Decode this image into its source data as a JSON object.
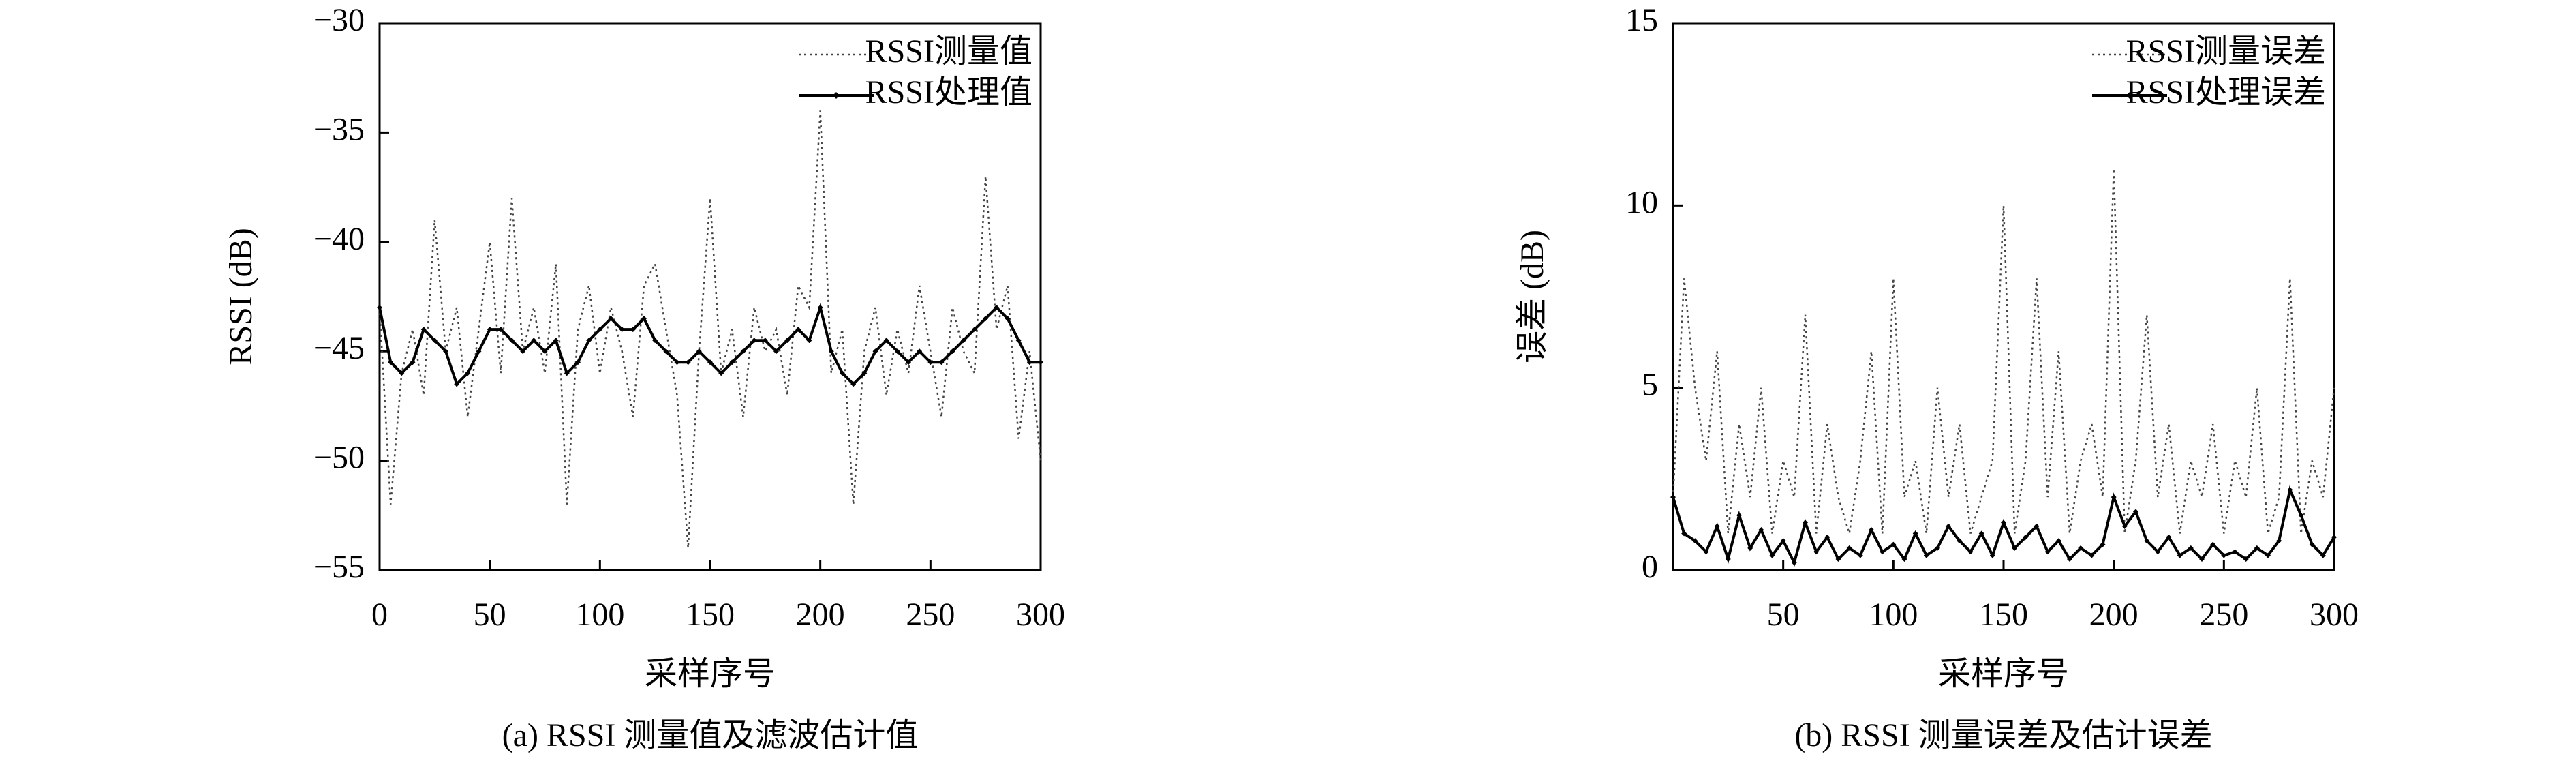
{
  "chart_data": [
    {
      "type": "line",
      "ylabel": "RSSI (dB)",
      "xlabel": "采样序号",
      "caption": "(a) RSSI 测量值及滤波估计值",
      "x": [
        0,
        5,
        10,
        15,
        20,
        25,
        30,
        35,
        40,
        45,
        50,
        55,
        60,
        65,
        70,
        75,
        80,
        85,
        90,
        95,
        100,
        105,
        110,
        115,
        120,
        125,
        130,
        135,
        140,
        145,
        150,
        155,
        160,
        165,
        170,
        175,
        180,
        185,
        190,
        195,
        200,
        205,
        210,
        215,
        220,
        225,
        230,
        235,
        240,
        245,
        250,
        255,
        260,
        265,
        270,
        275,
        280,
        285,
        290,
        295,
        300
      ],
      "series": [
        {
          "name": "RSSI测量值",
          "color": "#444444",
          "dash": "dotted",
          "markers": false,
          "values": [
            -43,
            -52,
            -46,
            -44,
            -47,
            -39,
            -45,
            -43,
            -48,
            -44,
            -40,
            -46,
            -38,
            -45,
            -43,
            -46,
            -41,
            -52,
            -44,
            -42,
            -46,
            -43,
            -45,
            -48,
            -42,
            -41,
            -44,
            -47,
            -54,
            -45,
            -38,
            -46,
            -44,
            -48,
            -43,
            -45,
            -44,
            -47,
            -42,
            -43,
            -34,
            -46,
            -44,
            -52,
            -45,
            -43,
            -47,
            -44,
            -46,
            -42,
            -45,
            -48,
            -43,
            -45,
            -46,
            -37,
            -44,
            -42,
            -49,
            -45,
            -50
          ]
        },
        {
          "name": "RSSI处理值",
          "color": "#000000",
          "dash": "solid",
          "markers": true,
          "values": [
            -43,
            -45.5,
            -46,
            -45.5,
            -44,
            -44.5,
            -45,
            -46.5,
            -46,
            -45,
            -44,
            -44,
            -44.5,
            -45,
            -44.5,
            -45,
            -44.5,
            -46,
            -45.5,
            -44.5,
            -44,
            -43.5,
            -44,
            -44,
            -43.5,
            -44.5,
            -45,
            -45.5,
            -45.5,
            -45,
            -45.5,
            -46,
            -45.5,
            -45,
            -44.5,
            -44.5,
            -45,
            -44.5,
            -44,
            -44.5,
            -43,
            -45,
            -46,
            -46.5,
            -46,
            -45,
            -44.5,
            -45,
            -45.5,
            -45,
            -45.5,
            -45.5,
            -45,
            -44.5,
            -44,
            -43.5,
            -43,
            -43.5,
            -44.5,
            -45.5,
            -45.5
          ]
        }
      ],
      "xlim": [
        0,
        300
      ],
      "xticks": [
        0,
        50,
        100,
        150,
        200,
        250,
        300
      ],
      "ylim": [
        -55,
        -30
      ],
      "yticks": [
        {
          "value": -55,
          "label": "−55"
        },
        {
          "value": -50,
          "label": "−50"
        },
        {
          "value": -45,
          "label": "−45"
        },
        {
          "value": -40,
          "label": "−40"
        },
        {
          "value": -35,
          "label": "−35"
        },
        {
          "value": -30,
          "label": "−30"
        }
      ],
      "legend": "upper right"
    },
    {
      "type": "line",
      "ylabel": "误差 (dB)",
      "xlabel": "采样序号",
      "caption": "(b) RSSI 测量误差及估计误差",
      "x": [
        0,
        5,
        10,
        15,
        20,
        25,
        30,
        35,
        40,
        45,
        50,
        55,
        60,
        65,
        70,
        75,
        80,
        85,
        90,
        95,
        100,
        105,
        110,
        115,
        120,
        125,
        130,
        135,
        140,
        145,
        150,
        155,
        160,
        165,
        170,
        175,
        180,
        185,
        190,
        195,
        200,
        205,
        210,
        215,
        220,
        225,
        230,
        235,
        240,
        245,
        250,
        255,
        260,
        265,
        270,
        275,
        280,
        285,
        290,
        295,
        300
      ],
      "series": [
        {
          "name": "RSSI测量误差",
          "color": "#444444",
          "dash": "dotted",
          "markers": false,
          "values": [
            2,
            8,
            5,
            3,
            6,
            1,
            4,
            2,
            5,
            1,
            3,
            2,
            7,
            1,
            4,
            2,
            1,
            3,
            6,
            1,
            8,
            2,
            3,
            1,
            5,
            2,
            4,
            1,
            2,
            3,
            10,
            1,
            3,
            8,
            2,
            6,
            1,
            3,
            4,
            2,
            11,
            1,
            3,
            7,
            2,
            4,
            1,
            3,
            2,
            4,
            1,
            3,
            2,
            5,
            1,
            2,
            8,
            1,
            3,
            2,
            5
          ]
        },
        {
          "name": "RSSI处理误差",
          "color": "#000000",
          "dash": "solid",
          "markers": true,
          "values": [
            2,
            1,
            0.8,
            0.5,
            1.2,
            0.3,
            1.5,
            0.6,
            1.1,
            0.4,
            0.8,
            0.2,
            1.3,
            0.5,
            0.9,
            0.3,
            0.6,
            0.4,
            1.1,
            0.5,
            0.7,
            0.3,
            1,
            0.4,
            0.6,
            1.2,
            0.8,
            0.5,
            1,
            0.4,
            1.3,
            0.6,
            0.9,
            1.2,
            0.5,
            0.8,
            0.3,
            0.6,
            0.4,
            0.7,
            2,
            1.2,
            1.6,
            0.8,
            0.5,
            0.9,
            0.4,
            0.6,
            0.3,
            0.7,
            0.4,
            0.5,
            0.3,
            0.6,
            0.4,
            0.8,
            2.2,
            1.5,
            0.7,
            0.4,
            0.9
          ]
        }
      ],
      "xlim": [
        0,
        300
      ],
      "xticks": [
        50,
        100,
        150,
        200,
        250,
        300
      ],
      "ylim": [
        0,
        15
      ],
      "yticks": [
        0,
        5,
        10,
        15
      ],
      "legend": "upper right"
    }
  ]
}
